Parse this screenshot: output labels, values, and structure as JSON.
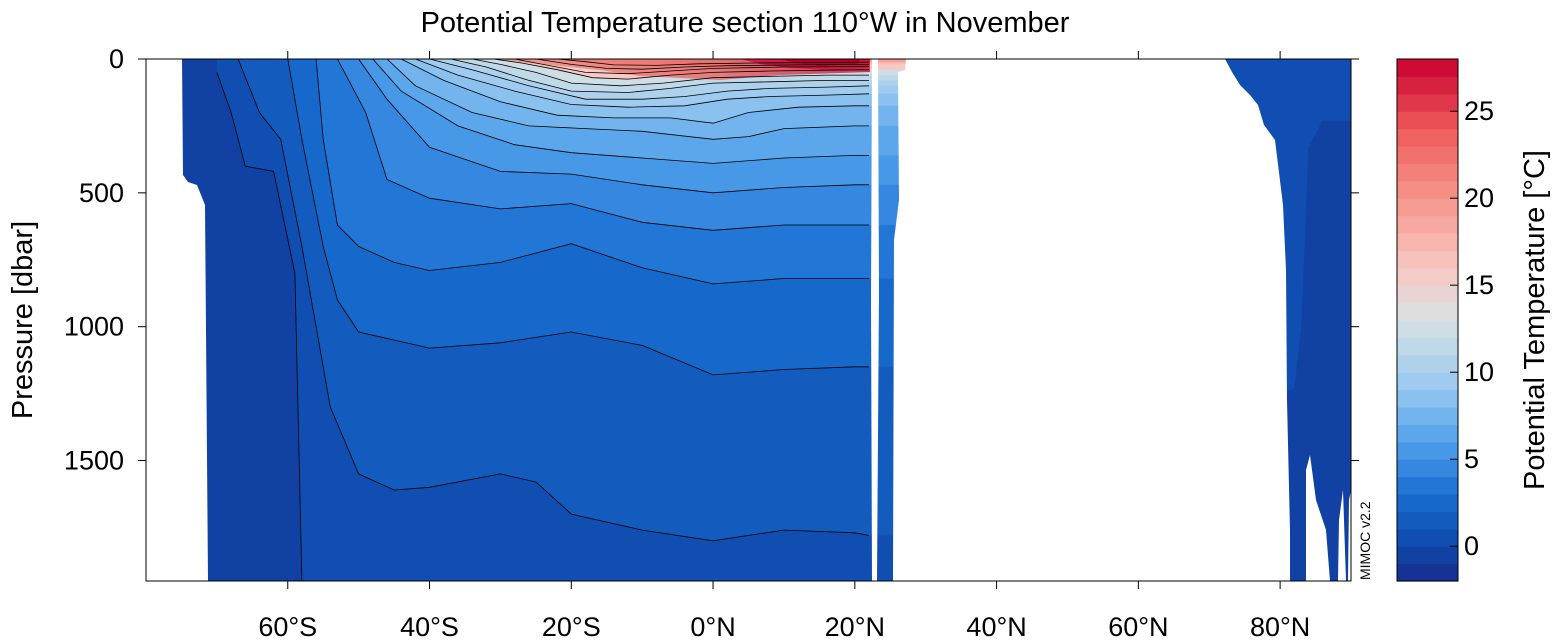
{
  "chart_data": {
    "type": "heatmap",
    "title": "Potential Temperature section 110°W in November",
    "xlabel": "",
    "ylabel": "Pressure [dbar]",
    "colorbar_label": "Potential Temperature [°C]",
    "credit": "MIMOC v2.2",
    "xlim": [
      -80,
      90
    ],
    "ylim": [
      1950,
      0
    ],
    "x_ticks": [
      {
        "value": -60,
        "label": "60°S"
      },
      {
        "value": -40,
        "label": "40°S"
      },
      {
        "value": -20,
        "label": "20°S"
      },
      {
        "value": 0,
        "label": "0°N"
      },
      {
        "value": 20,
        "label": "20°N"
      },
      {
        "value": 40,
        "label": "40°N"
      },
      {
        "value": 60,
        "label": "60°N"
      },
      {
        "value": 80,
        "label": "80°N"
      }
    ],
    "y_ticks": [
      {
        "value": 0,
        "label": "0"
      },
      {
        "value": 500,
        "label": "500"
      },
      {
        "value": 1000,
        "label": "1000"
      },
      {
        "value": 1500,
        "label": "1500"
      }
    ],
    "colorbar": {
      "range": [
        -2,
        28
      ],
      "step": 1,
      "ticks": [
        {
          "value": 0,
          "label": "0"
        },
        {
          "value": 5,
          "label": "5"
        },
        {
          "value": 10,
          "label": "10"
        },
        {
          "value": 15,
          "label": "15"
        },
        {
          "value": 20,
          "label": "20"
        },
        {
          "value": 25,
          "label": "25"
        }
      ]
    },
    "contours": [
      {
        "level": 0,
        "points": [
          [
            -70,
            50
          ],
          [
            -68,
            200
          ],
          [
            -66,
            400
          ],
          [
            -62,
            420
          ],
          [
            -59,
            800
          ],
          [
            -58,
            1950
          ]
        ]
      },
      {
        "level": 1,
        "points": [
          [
            -67,
            0
          ],
          [
            -64,
            200
          ],
          [
            -61,
            300
          ],
          [
            -58,
            700
          ],
          [
            -56,
            1000
          ],
          [
            -54,
            1300
          ],
          [
            -50,
            1550
          ],
          [
            -45,
            1610
          ],
          [
            -40,
            1600
          ],
          [
            -30,
            1550
          ],
          [
            -25,
            1580
          ],
          [
            -20,
            1700
          ],
          [
            -10,
            1760
          ],
          [
            0,
            1800
          ],
          [
            10,
            1760
          ],
          [
            20,
            1770
          ],
          [
            22,
            1780
          ]
        ]
      },
      {
        "level": 2,
        "points": [
          [
            -60,
            0
          ],
          [
            -58,
            300
          ],
          [
            -55,
            700
          ],
          [
            -53,
            900
          ],
          [
            -50,
            1020
          ],
          [
            -40,
            1080
          ],
          [
            -30,
            1060
          ],
          [
            -20,
            1020
          ],
          [
            -10,
            1070
          ],
          [
            0,
            1180
          ],
          [
            10,
            1160
          ],
          [
            20,
            1150
          ],
          [
            22,
            1150
          ]
        ]
      },
      {
        "level": 3,
        "points": [
          [
            -56,
            0
          ],
          [
            -55,
            300
          ],
          [
            -53,
            620
          ],
          [
            -50,
            700
          ],
          [
            -45,
            760
          ],
          [
            -40,
            790
          ],
          [
            -30,
            760
          ],
          [
            -20,
            690
          ],
          [
            -10,
            780
          ],
          [
            0,
            840
          ],
          [
            10,
            820
          ],
          [
            20,
            820
          ],
          [
            22,
            820
          ]
        ]
      },
      {
        "level": 4,
        "points": [
          [
            -53,
            0
          ],
          [
            -49,
            200
          ],
          [
            -46,
            450
          ],
          [
            -40,
            520
          ],
          [
            -30,
            560
          ],
          [
            -20,
            540
          ],
          [
            -10,
            610
          ],
          [
            0,
            640
          ],
          [
            10,
            620
          ],
          [
            20,
            620
          ],
          [
            22,
            620
          ]
        ]
      },
      {
        "level": 5,
        "points": [
          [
            -50,
            0
          ],
          [
            -46,
            150
          ],
          [
            -40,
            330
          ],
          [
            -30,
            420
          ],
          [
            -20,
            430
          ],
          [
            -10,
            470
          ],
          [
            0,
            500
          ],
          [
            10,
            480
          ],
          [
            20,
            470
          ],
          [
            22,
            470
          ]
        ]
      },
      {
        "level": 6,
        "points": [
          [
            -48,
            0
          ],
          [
            -44,
            120
          ],
          [
            -36,
            250
          ],
          [
            -28,
            320
          ],
          [
            -20,
            350
          ],
          [
            -10,
            370
          ],
          [
            0,
            390
          ],
          [
            10,
            370
          ],
          [
            20,
            360
          ],
          [
            22,
            360
          ]
        ]
      },
      {
        "level": 7,
        "points": [
          [
            -46,
            0
          ],
          [
            -42,
            100
          ],
          [
            -34,
            200
          ],
          [
            -26,
            250
          ],
          [
            -18,
            260
          ],
          [
            -10,
            270
          ],
          [
            0,
            300
          ],
          [
            5,
            290
          ],
          [
            10,
            260
          ],
          [
            20,
            250
          ],
          [
            22,
            250
          ]
        ]
      },
      {
        "level": 8,
        "points": [
          [
            -44,
            0
          ],
          [
            -38,
            80
          ],
          [
            -30,
            160
          ],
          [
            -22,
            210
          ],
          [
            -14,
            220
          ],
          [
            -6,
            220
          ],
          [
            0,
            240
          ],
          [
            5,
            200
          ],
          [
            12,
            180
          ],
          [
            20,
            175
          ],
          [
            22,
            175
          ]
        ]
      },
      {
        "level": 9,
        "points": [
          [
            -42,
            0
          ],
          [
            -36,
            60
          ],
          [
            -28,
            120
          ],
          [
            -20,
            170
          ],
          [
            -12,
            180
          ],
          [
            -4,
            175
          ],
          [
            2,
            150
          ],
          [
            8,
            140
          ],
          [
            16,
            135
          ],
          [
            22,
            130
          ]
        ]
      },
      {
        "level": 10,
        "points": [
          [
            -40,
            0
          ],
          [
            -34,
            40
          ],
          [
            -26,
            100
          ],
          [
            -18,
            150
          ],
          [
            -10,
            150
          ],
          [
            -4,
            140
          ],
          [
            2,
            120
          ],
          [
            8,
            110
          ],
          [
            16,
            105
          ],
          [
            22,
            100
          ]
        ]
      },
      {
        "level": 11,
        "points": [
          [
            -37,
            0
          ],
          [
            -32,
            30
          ],
          [
            -26,
            80
          ],
          [
            -20,
            120
          ],
          [
            -12,
            125
          ],
          [
            -6,
            110
          ],
          [
            0,
            90
          ],
          [
            8,
            85
          ],
          [
            16,
            80
          ],
          [
            22,
            80
          ]
        ]
      },
      {
        "level": 12,
        "points": [
          [
            -34,
            0
          ],
          [
            -30,
            20
          ],
          [
            -25,
            50
          ],
          [
            -20,
            90
          ],
          [
            -13,
            100
          ],
          [
            -7,
            90
          ],
          [
            0,
            70
          ],
          [
            8,
            65
          ],
          [
            16,
            60
          ],
          [
            22,
            60
          ]
        ]
      },
      {
        "level": 13,
        "points": [
          [
            -31,
            0
          ],
          [
            -27,
            15
          ],
          [
            -22,
            40
          ],
          [
            -17,
            70
          ],
          [
            -12,
            75
          ],
          [
            -6,
            60
          ],
          [
            0,
            50
          ],
          [
            8,
            45
          ],
          [
            16,
            42
          ],
          [
            22,
            40
          ]
        ]
      }
    ]
  }
}
